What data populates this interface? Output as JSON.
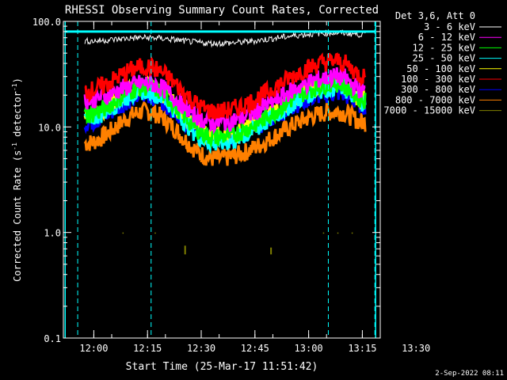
{
  "chart_data": {
    "type": "line",
    "title": "RHESSI Observing Summary Count Rates, Corrected",
    "xlabel": "Start Time (25-Mar-17 11:51:42)",
    "ylabel_main": "Corrected Count Rate (s",
    "ylabel_sup1": "-1",
    "ylabel_mid": " detector",
    "ylabel_sup2": "-1",
    "ylabel_end": ")",
    "yscale": "log",
    "ylim": [
      0.1,
      100
    ],
    "xlim_minutes": [
      11.5,
      100
    ],
    "x_ticks": [
      {
        "minute": 20,
        "label": "12:00"
      },
      {
        "minute": 35,
        "label": "12:15"
      },
      {
        "minute": 50,
        "label": "12:30"
      },
      {
        "minute": 65,
        "label": "12:45"
      },
      {
        "minute": 80,
        "label": "13:00"
      },
      {
        "minute": 95,
        "label": "13:15"
      },
      {
        "minute": 110,
        "label": "13:30"
      }
    ],
    "y_ticks": [
      {
        "value": 100,
        "label": "100.0"
      },
      {
        "value": 10,
        "label": "10.0"
      },
      {
        "value": 1,
        "label": "1.0"
      },
      {
        "value": 0.1,
        "label": "0.1"
      }
    ],
    "legend_header": "Det 3,6, Att 0",
    "legend_position": "right",
    "series": [
      {
        "name": "3 - 6 keV",
        "color": "#ffffff",
        "start": 65,
        "peak1": 70,
        "min": 62,
        "peak2": 78,
        "end": 75
      },
      {
        "name": "6 - 12 keV",
        "color": "#ff00ff",
        "start": 18,
        "peak1": 26,
        "min": 11,
        "peak2": 30,
        "end": 22
      },
      {
        "name": "12 - 25 keV",
        "color": "#00ff00",
        "start": 13,
        "peak1": 24,
        "min": 8,
        "peak2": 26,
        "end": 18
      },
      {
        "name": "25 - 50 keV",
        "color": "#00ffff",
        "start": 12,
        "peak1": 22,
        "min": 7,
        "peak2": 24,
        "end": 17
      },
      {
        "name": "50 - 100 keV",
        "color": "#ffff00",
        "start": 13,
        "peak1": 24,
        "min": 8,
        "peak2": 26,
        "end": 18
      },
      {
        "name": "100 - 300 keV",
        "color": "#ff0000",
        "start": 22,
        "peak1": 37,
        "min": 14,
        "peak2": 42,
        "end": 30
      },
      {
        "name": "300 - 800 keV",
        "color": "#0000ff",
        "start": 11,
        "peak1": 20,
        "min": 8,
        "peak2": 21,
        "end": 16
      },
      {
        "name": "800 - 7000 keV",
        "color": "#ff8000",
        "start": 7,
        "peak1": 14,
        "min": 5,
        "peak2": 14,
        "end": 11
      },
      {
        "name": "7000 - 15000 keV",
        "color": "#808000",
        "start": 0.6,
        "peak1": 0.6,
        "min": 0.6,
        "peak2": 0.6,
        "end": 0.6
      }
    ],
    "series_x_range_minutes": [
      17.5,
      96
    ],
    "dashed_vertical_minutes": [
      15.5,
      36.0,
      85.5,
      98.5
    ],
    "solid_vertical_minutes": [
      12.0,
      98.7
    ],
    "flag_color": "#00ffff"
  },
  "footer_date": "2-Sep-2022 08:11"
}
